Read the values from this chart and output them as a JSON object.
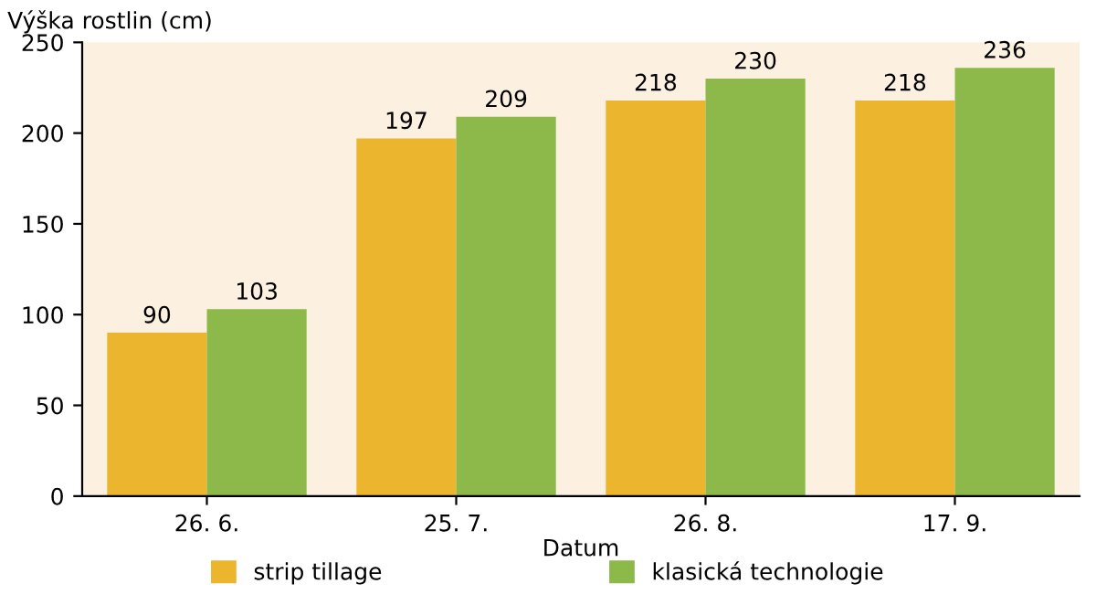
{
  "chart_data": {
    "type": "bar",
    "ylabel": "Výška rostlin (cm)",
    "xlabel": "Datum",
    "categories": [
      "26. 6.",
      "25. 7.",
      "26. 8.",
      "17. 9."
    ],
    "series": [
      {
        "name": "strip tillage",
        "color": "#ecb52e",
        "values": [
          90,
          197,
          218,
          218
        ]
      },
      {
        "name": "klasická technologie",
        "color": "#8cb94a",
        "values": [
          103,
          209,
          230,
          236
        ]
      }
    ],
    "ylim": [
      0,
      250
    ],
    "yticks": [
      0,
      50,
      100,
      150,
      200,
      250
    ],
    "grid": false,
    "legend": "bottom",
    "data_labels": true
  }
}
